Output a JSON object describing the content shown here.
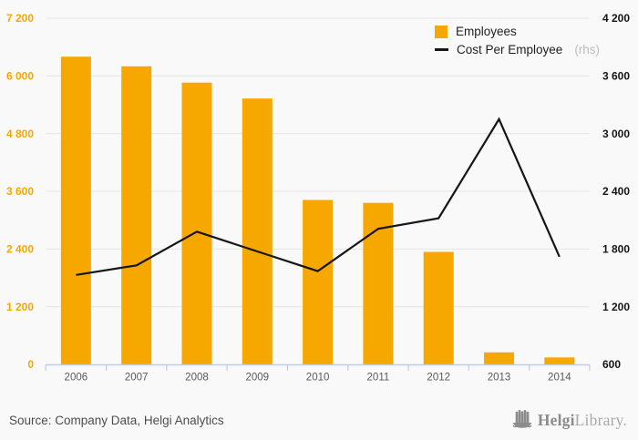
{
  "chart_data": {
    "type": "bar",
    "title": "",
    "categories": [
      "2006",
      "2007",
      "2008",
      "2009",
      "2010",
      "2011",
      "2012",
      "2013",
      "2014"
    ],
    "series": [
      {
        "name": "Employees",
        "type": "bar",
        "axis": "left",
        "values": [
          6400,
          6200,
          5860,
          5530,
          3420,
          3360,
          2340,
          250,
          145
        ]
      },
      {
        "name": "Cost Per Employee (rhs)",
        "type": "line",
        "axis": "right",
        "values": [
          1530,
          1630,
          1980,
          1775,
          1570,
          2010,
          2120,
          3150,
          1720
        ]
      }
    ],
    "left_axis": {
      "min": 0,
      "max": 7200,
      "step": 1200,
      "tick_labels": [
        "7 200",
        "6 000",
        "4 800",
        "3 600",
        "2 400",
        "1 200",
        "0"
      ]
    },
    "right_axis": {
      "min": 600,
      "max": 4200,
      "step": 600,
      "tick_labels": [
        "4 200",
        "3 600",
        "3 000",
        "2 400",
        "1 800",
        "1 200",
        "600"
      ]
    },
    "grid": true,
    "legend_position": "top-right"
  },
  "legend": {
    "employees_label": "Employees",
    "cost_label": "Cost Per Employee",
    "cost_suffix": "(rhs)"
  },
  "footer": {
    "source": "Source: Company Data, Helgi Analytics",
    "logo_bold": "Helgi",
    "logo_light": "Library."
  },
  "colors": {
    "bar": "#F7A800",
    "line": "#161616",
    "left_axis_label": "#F5A800",
    "right_axis_label": "#161616",
    "grid_line": "#E6E6E6",
    "axis_line": "#C3CBE0",
    "year_label": "#595959",
    "background": "#F9F9F9",
    "rhs_suffix": "#BDBDBD",
    "source_text": "#4D4D4D",
    "logo": "#8C8C8C"
  }
}
